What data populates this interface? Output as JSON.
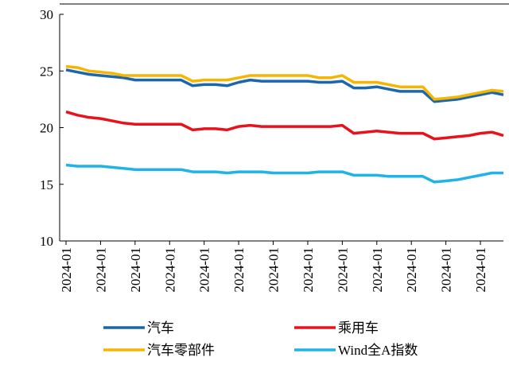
{
  "chart_data": {
    "type": "line",
    "categories": [
      "2024-01",
      null,
      null,
      "2024-01",
      null,
      null,
      "2024-01",
      null,
      null,
      "2024-01",
      null,
      null,
      "2024-01",
      null,
      null,
      "2024-01",
      null,
      null,
      "2024-01",
      null,
      null,
      "2024-01",
      null,
      null,
      "2024-01",
      null,
      null,
      "2024-01",
      null,
      null,
      "2024-01",
      null,
      null,
      "2024-01",
      null,
      null,
      "2024-01",
      null,
      null
    ],
    "series": [
      {
        "name": "汽车",
        "color": "#1b67ad",
        "values": [
          25.1,
          24.9,
          24.7,
          24.6,
          24.5,
          24.4,
          24.2,
          24.2,
          24.2,
          24.2,
          24.2,
          23.7,
          23.8,
          23.8,
          23.7,
          24.0,
          24.2,
          24.1,
          24.1,
          24.1,
          24.1,
          24.1,
          24.0,
          24.0,
          24.1,
          23.5,
          23.5,
          23.6,
          23.4,
          23.2,
          23.2,
          23.2,
          22.3,
          22.4,
          22.5,
          22.7,
          22.9,
          23.1,
          22.9
        ]
      },
      {
        "name": "乘用车",
        "color": "#e8121c",
        "values": [
          21.4,
          21.1,
          20.9,
          20.8,
          20.6,
          20.4,
          20.3,
          20.3,
          20.3,
          20.3,
          20.3,
          19.8,
          19.9,
          19.9,
          19.8,
          20.1,
          20.2,
          20.1,
          20.1,
          20.1,
          20.1,
          20.1,
          20.1,
          20.1,
          20.2,
          19.5,
          19.6,
          19.7,
          19.6,
          19.5,
          19.5,
          19.5,
          19.0,
          19.1,
          19.2,
          19.3,
          19.5,
          19.6,
          19.3
        ]
      },
      {
        "name": "汽车零部件",
        "color": "#f7b500",
        "values": [
          25.4,
          25.3,
          25.0,
          24.9,
          24.8,
          24.6,
          24.6,
          24.6,
          24.6,
          24.6,
          24.6,
          24.1,
          24.2,
          24.2,
          24.2,
          24.4,
          24.6,
          24.6,
          24.6,
          24.6,
          24.6,
          24.6,
          24.4,
          24.4,
          24.6,
          24.0,
          24.0,
          24.0,
          23.8,
          23.6,
          23.6,
          23.6,
          22.5,
          22.6,
          22.7,
          22.9,
          23.1,
          23.3,
          23.2
        ]
      },
      {
        "name": "Wind全A指数",
        "color": "#1fb3e8",
        "values": [
          16.7,
          16.6,
          16.6,
          16.6,
          16.5,
          16.4,
          16.3,
          16.3,
          16.3,
          16.3,
          16.3,
          16.1,
          16.1,
          16.1,
          16.0,
          16.1,
          16.1,
          16.1,
          16.0,
          16.0,
          16.0,
          16.0,
          16.1,
          16.1,
          16.1,
          15.8,
          15.8,
          15.8,
          15.7,
          15.7,
          15.7,
          15.7,
          15.2,
          15.3,
          15.4,
          15.6,
          15.8,
          16.0,
          16.0
        ]
      }
    ],
    "ylim": [
      10,
      30
    ],
    "yticks": [
      10,
      15,
      20,
      25,
      30
    ]
  }
}
